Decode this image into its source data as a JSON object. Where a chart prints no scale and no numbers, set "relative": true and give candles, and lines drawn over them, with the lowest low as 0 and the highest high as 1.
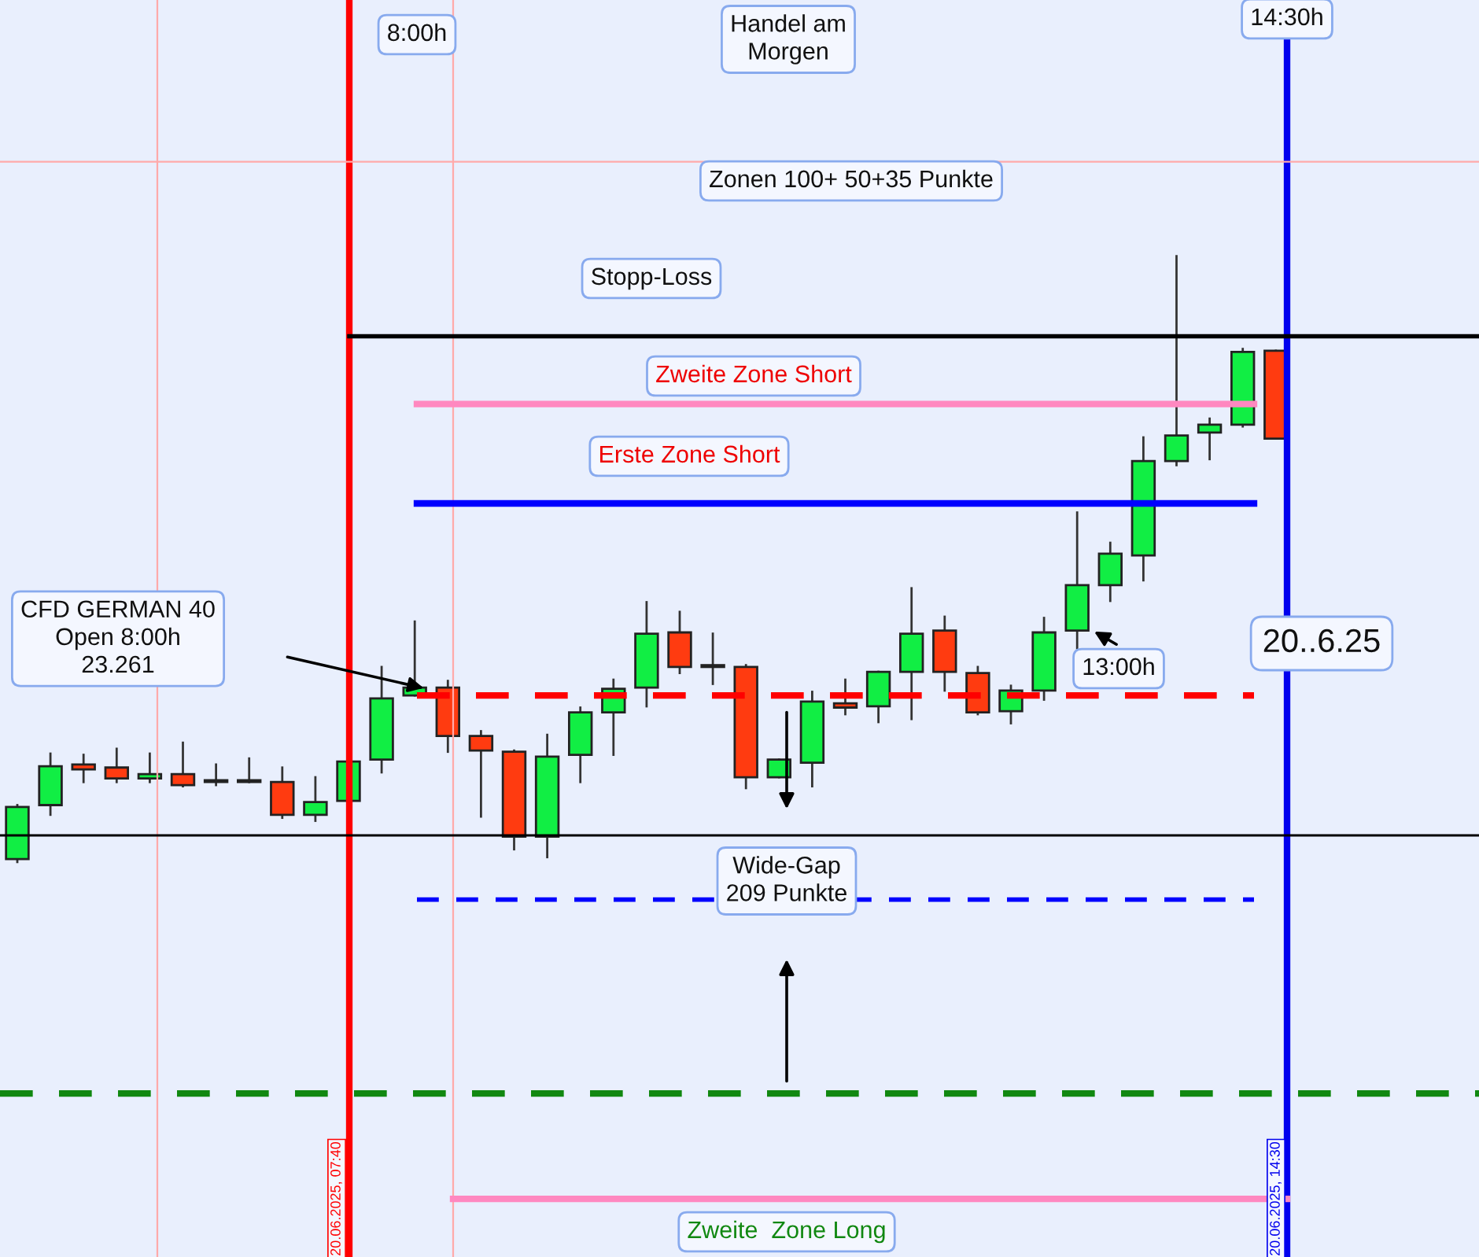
{
  "chart_data": {
    "type": "candlestick",
    "relative": true,
    "categories": [
      null,
      null,
      null,
      null,
      null,
      null,
      null,
      null,
      null,
      null,
      null,
      null,
      null,
      null,
      null,
      null,
      null,
      null,
      null,
      null,
      null,
      null,
      null,
      null,
      null,
      null,
      null,
      null,
      null,
      null,
      null,
      null,
      null,
      null,
      null,
      null,
      null,
      null,
      null
    ],
    "ohlc": [
      [
        0.005,
        0.094,
        0.0,
        0.091
      ],
      [
        0.094,
        0.179,
        0.078,
        0.158
      ],
      [
        0.161,
        0.177,
        0.132,
        0.153
      ],
      [
        0.156,
        0.187,
        0.132,
        0.138
      ],
      [
        0.138,
        0.179,
        0.132,
        0.145
      ],
      [
        0.145,
        0.197,
        0.125,
        0.127
      ],
      [
        0.132,
        0.161,
        0.127,
        0.132
      ],
      [
        0.132,
        0.171,
        0.132,
        0.132
      ],
      [
        0.132,
        0.156,
        0.073,
        0.078
      ],
      [
        0.078,
        0.14,
        0.068,
        0.099
      ],
      [
        0.101,
        0.166,
        0.101,
        0.166
      ],
      [
        0.169,
        0.322,
        0.148,
        0.27
      ],
      [
        0.275,
        0.397,
        0.275,
        0.288
      ],
      [
        0.288,
        0.299,
        0.182,
        0.208
      ],
      [
        0.208,
        0.216,
        0.075,
        0.184
      ],
      [
        0.182,
        0.184,
        0.021,
        0.042
      ],
      [
        0.042,
        0.21,
        0.008,
        0.174
      ],
      [
        0.177,
        0.255,
        0.132,
        0.247
      ],
      [
        0.247,
        0.301,
        0.177,
        0.286
      ],
      [
        0.288,
        0.429,
        0.257,
        0.377
      ],
      [
        0.379,
        0.413,
        0.312,
        0.322
      ],
      [
        0.322,
        0.377,
        0.294,
        0.322
      ],
      [
        0.322,
        0.325,
        0.122,
        0.14
      ],
      [
        0.14,
        0.169,
        0.14,
        0.169
      ],
      [
        0.164,
        0.281,
        0.125,
        0.265
      ],
      [
        0.262,
        0.301,
        0.244,
        0.255
      ],
      [
        0.257,
        0.314,
        0.231,
        0.314
      ],
      [
        0.314,
        0.452,
        0.236,
        0.377
      ],
      [
        0.382,
        0.405,
        0.283,
        0.314
      ],
      [
        0.312,
        0.322,
        0.244,
        0.247
      ],
      [
        0.249,
        0.291,
        0.229,
        0.283
      ],
      [
        0.283,
        0.403,
        0.268,
        0.379
      ],
      [
        0.382,
        0.577,
        0.353,
        0.457
      ],
      [
        0.457,
        0.527,
        0.431,
        0.509
      ],
      [
        0.506,
        0.701,
        0.465,
        0.662
      ],
      [
        0.662,
        1.0,
        0.655,
        0.704
      ],
      [
        0.709,
        0.732,
        0.665,
        0.722
      ],
      [
        0.722,
        0.847,
        0.719,
        0.842
      ],
      [
        0.844,
        0.844,
        0.699,
        0.699
      ]
    ],
    "ref_lines": [
      {
        "axis": "y",
        "value": 0.868,
        "color": "#000000",
        "line_style": "solid"
      },
      {
        "axis": "y",
        "value": 0.756,
        "color": "#ff88c0",
        "line_style": "solid"
      },
      {
        "axis": "y",
        "value": 0.592,
        "color": "#0000ff",
        "line_style": "solid"
      },
      {
        "axis": "y",
        "value": 0.275,
        "color": "#ff0000",
        "line_style": "dashed"
      },
      {
        "axis": "y",
        "value": 0.044,
        "color": "#000000",
        "line_style": "solid"
      },
      {
        "axis": "y",
        "value": -0.062,
        "color": "#0000ff",
        "line_style": "dashed"
      },
      {
        "axis": "y",
        "value": -0.382,
        "color": "#118811",
        "line_style": "dashed"
      },
      {
        "axis": "y",
        "value": -0.556,
        "color": "#ff88c0",
        "line_style": "solid"
      },
      {
        "axis": "y",
        "value": 1.156,
        "color": "#ffaaaa",
        "line_style": "solid"
      }
    ],
    "annotations": [
      "8:00h",
      "Handel am\nMorgen",
      "14:30h",
      "Zonen 100+ 50+35 Punkte",
      "Stopp-Loss",
      "Zweite Zone Short",
      "Erste Zone Short",
      "CFD GERMAN 40\nOpen 8:00h\n23.261",
      "13:00h",
      "20..6.25",
      "Wide-Gap\n209 Punkte",
      "Zweite  Zone Long",
      "20.06.2025, 07:40",
      "20.06.2025, 14:30"
    ]
  }
}
